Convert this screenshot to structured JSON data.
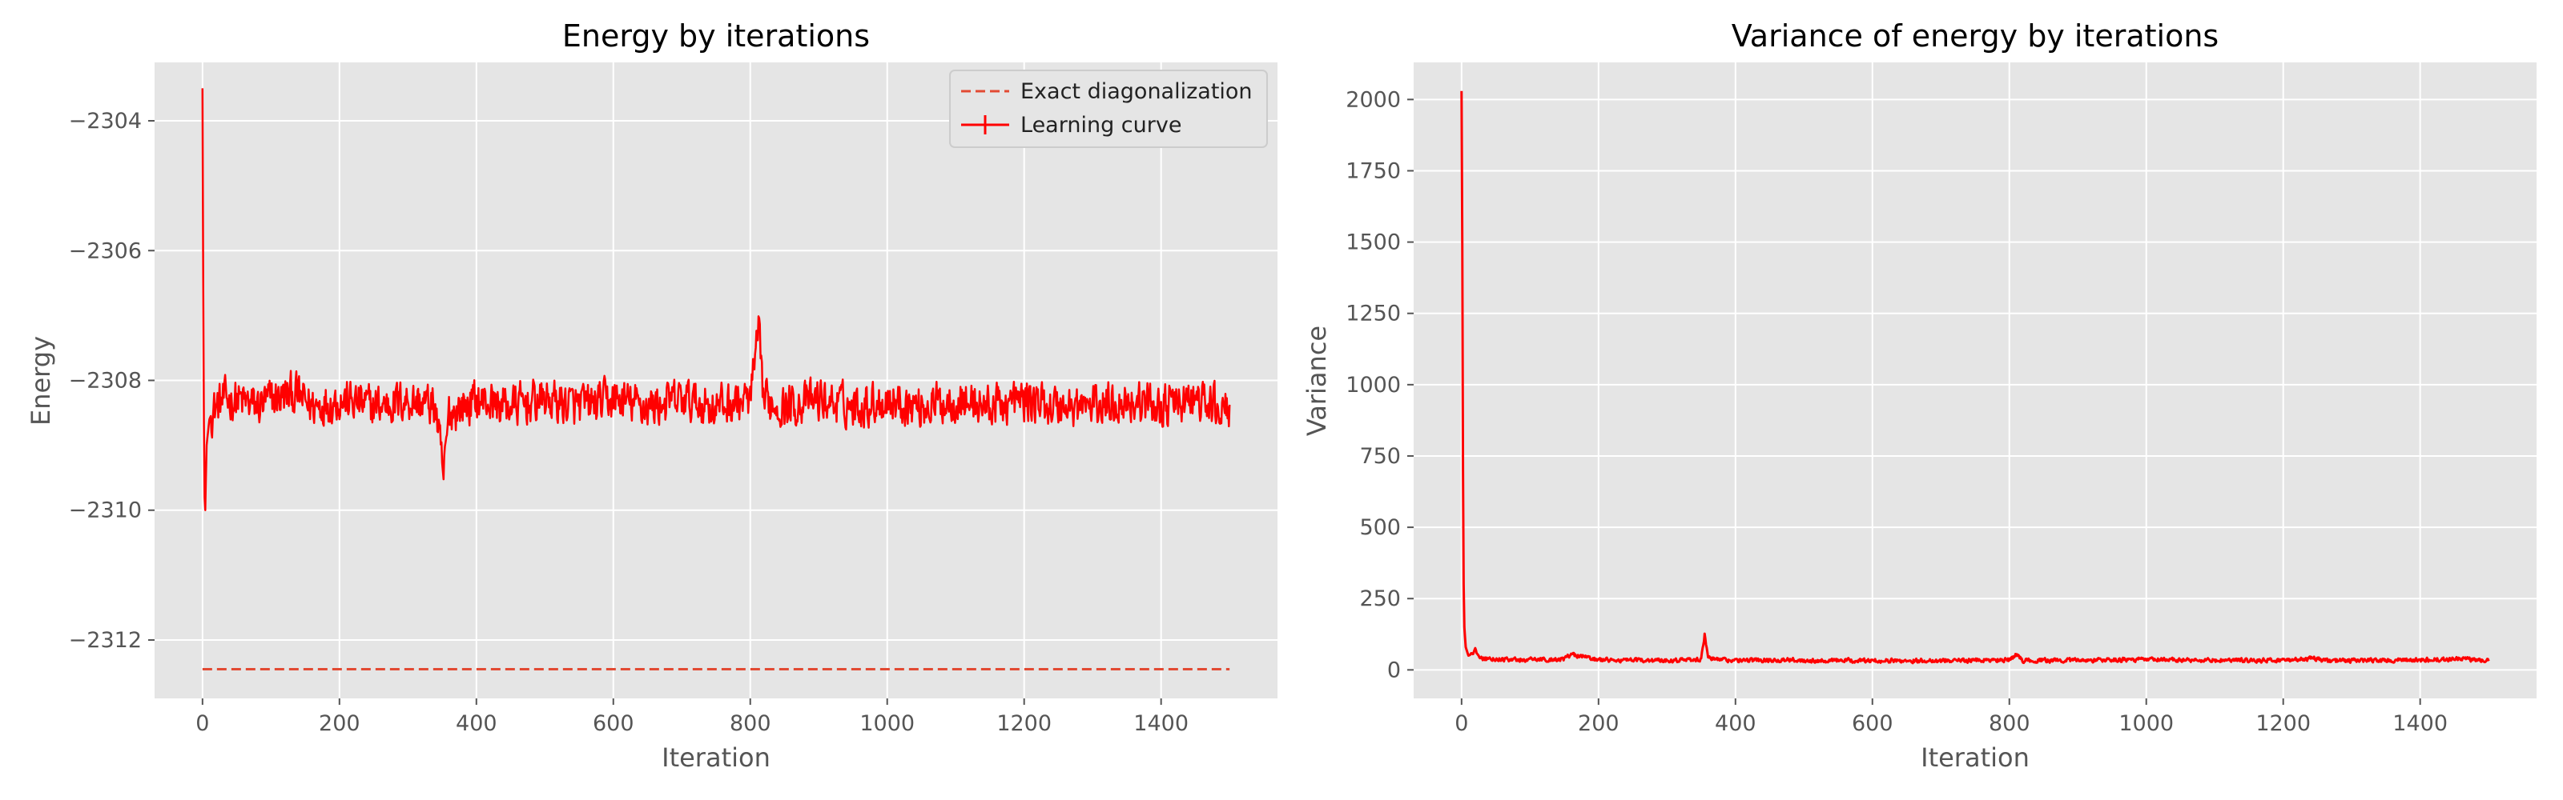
{
  "chart_data": [
    {
      "type": "line",
      "title": "Energy by iterations",
      "xlabel": "Iteration",
      "ylabel": "Energy",
      "xlim": [
        -70,
        1570
      ],
      "ylim": [
        -2312.9,
        -2303.1
      ],
      "xticks": [
        0,
        200,
        400,
        600,
        800,
        1000,
        1200,
        1400
      ],
      "xtick_labels": [
        "0",
        "200",
        "400",
        "600",
        "800",
        "1000",
        "1200",
        "1400"
      ],
      "yticks": [
        -2312,
        -2310,
        -2308,
        -2306,
        -2304
      ],
      "ytick_labels": [
        "−2312",
        "−2310",
        "−2308",
        "−2306",
        "−2304"
      ],
      "grid": true,
      "background": "#e5e5e5",
      "legend": {
        "position": "top-right",
        "entries": [
          {
            "label": "Exact diagonalization",
            "style": "dashed",
            "color": "#e24a33"
          },
          {
            "label": "Learning curve",
            "style": "solid-errorbar",
            "color": "#ff0000"
          }
        ]
      },
      "series": [
        {
          "name": "Exact diagonalization",
          "style": "dashed",
          "color": "#e24a33",
          "x": [
            0,
            1500
          ],
          "y": [
            -2312.45,
            -2312.45
          ]
        },
        {
          "name": "Learning curve",
          "style": "solid",
          "color": "#ff0000",
          "noise_amplitude": 0.45,
          "x": [
            0,
            1,
            2,
            3,
            4,
            5,
            6,
            8,
            10,
            14,
            20,
            30,
            50,
            80,
            100,
            135,
            160,
            200,
            250,
            300,
            340,
            352,
            360,
            400,
            450,
            500,
            550,
            600,
            650,
            700,
            750,
            800,
            812,
            820,
            850,
            900,
            950,
            1000,
            1050,
            1100,
            1150,
            1200,
            1250,
            1300,
            1350,
            1400,
            1450,
            1500
          ],
          "y": [
            -2303.5,
            -2306.5,
            -2308.7,
            -2309.8,
            -2310.0,
            -2309.5,
            -2309.0,
            -2308.8,
            -2308.6,
            -2308.5,
            -2308.4,
            -2308.3,
            -2308.3,
            -2308.4,
            -2308.3,
            -2308.2,
            -2308.4,
            -2308.3,
            -2308.4,
            -2308.3,
            -2308.4,
            -2309.5,
            -2308.5,
            -2308.3,
            -2308.4,
            -2308.3,
            -2308.4,
            -2308.3,
            -2308.4,
            -2308.3,
            -2308.4,
            -2308.3,
            -2307.3,
            -2308.3,
            -2308.4,
            -2308.3,
            -2308.4,
            -2308.3,
            -2308.4,
            -2308.3,
            -2308.4,
            -2308.3,
            -2308.4,
            -2308.4,
            -2308.3,
            -2308.4,
            -2308.3,
            -2308.5
          ]
        }
      ]
    },
    {
      "type": "line",
      "title": "Variance of energy by iterations",
      "xlabel": "Iteration",
      "ylabel": "Variance",
      "xlim": [
        -70,
        1570
      ],
      "ylim": [
        -100,
        2130
      ],
      "xticks": [
        0,
        200,
        400,
        600,
        800,
        1000,
        1200,
        1400
      ],
      "xtick_labels": [
        "0",
        "200",
        "400",
        "600",
        "800",
        "1000",
        "1200",
        "1400"
      ],
      "yticks": [
        0,
        250,
        500,
        750,
        1000,
        1250,
        1500,
        1750,
        2000
      ],
      "ytick_labels": [
        "0",
        "250",
        "500",
        "750",
        "1000",
        "1250",
        "1500",
        "1750",
        "2000"
      ],
      "grid": true,
      "background": "#e5e5e5",
      "series": [
        {
          "name": "Variance",
          "style": "solid",
          "color": "#ff0000",
          "noise_amplitude": 10,
          "x": [
            0,
            1,
            2,
            3,
            4,
            6,
            10,
            15,
            20,
            25,
            30,
            50,
            80,
            100,
            150,
            160,
            200,
            250,
            300,
            350,
            355,
            360,
            400,
            450,
            500,
            600,
            700,
            800,
            812,
            820,
            900,
            1000,
            1100,
            1200,
            1250,
            1260,
            1300,
            1400,
            1450,
            1500
          ],
          "y": [
            2030,
            1500,
            700,
            300,
            150,
            80,
            50,
            55,
            70,
            45,
            40,
            38,
            35,
            36,
            38,
            55,
            35,
            33,
            34,
            36,
            125,
            40,
            33,
            35,
            34,
            32,
            33,
            34,
            55,
            33,
            34,
            36,
            33,
            34,
            40,
            32,
            33,
            34,
            38,
            35
          ]
        }
      ]
    }
  ]
}
